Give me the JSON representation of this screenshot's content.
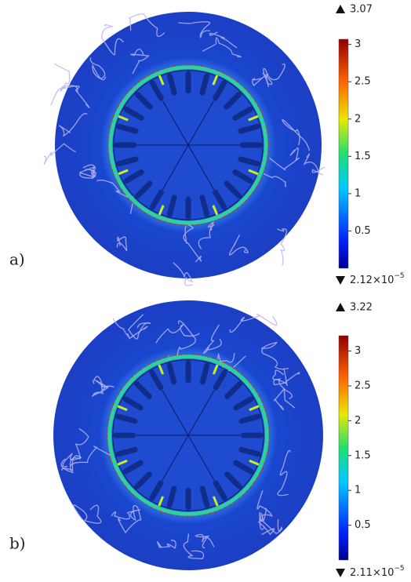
{
  "panels": [
    {
      "label": "a)",
      "max": 3.07,
      "min_mantissa": "2.12×10",
      "min_exponent": "−5",
      "clim": [
        2.12e-05,
        3.07
      ],
      "ticks": [
        0.5,
        1,
        1.5,
        2,
        2.5,
        3
      ]
    },
    {
      "label": "b)",
      "max": 3.22,
      "min_mantissa": "2.11×10",
      "min_exponent": "−5",
      "clim": [
        2.11e-05,
        3.22
      ],
      "ticks": [
        0.5,
        1,
        1.5,
        2,
        2.5,
        3
      ]
    }
  ]
}
